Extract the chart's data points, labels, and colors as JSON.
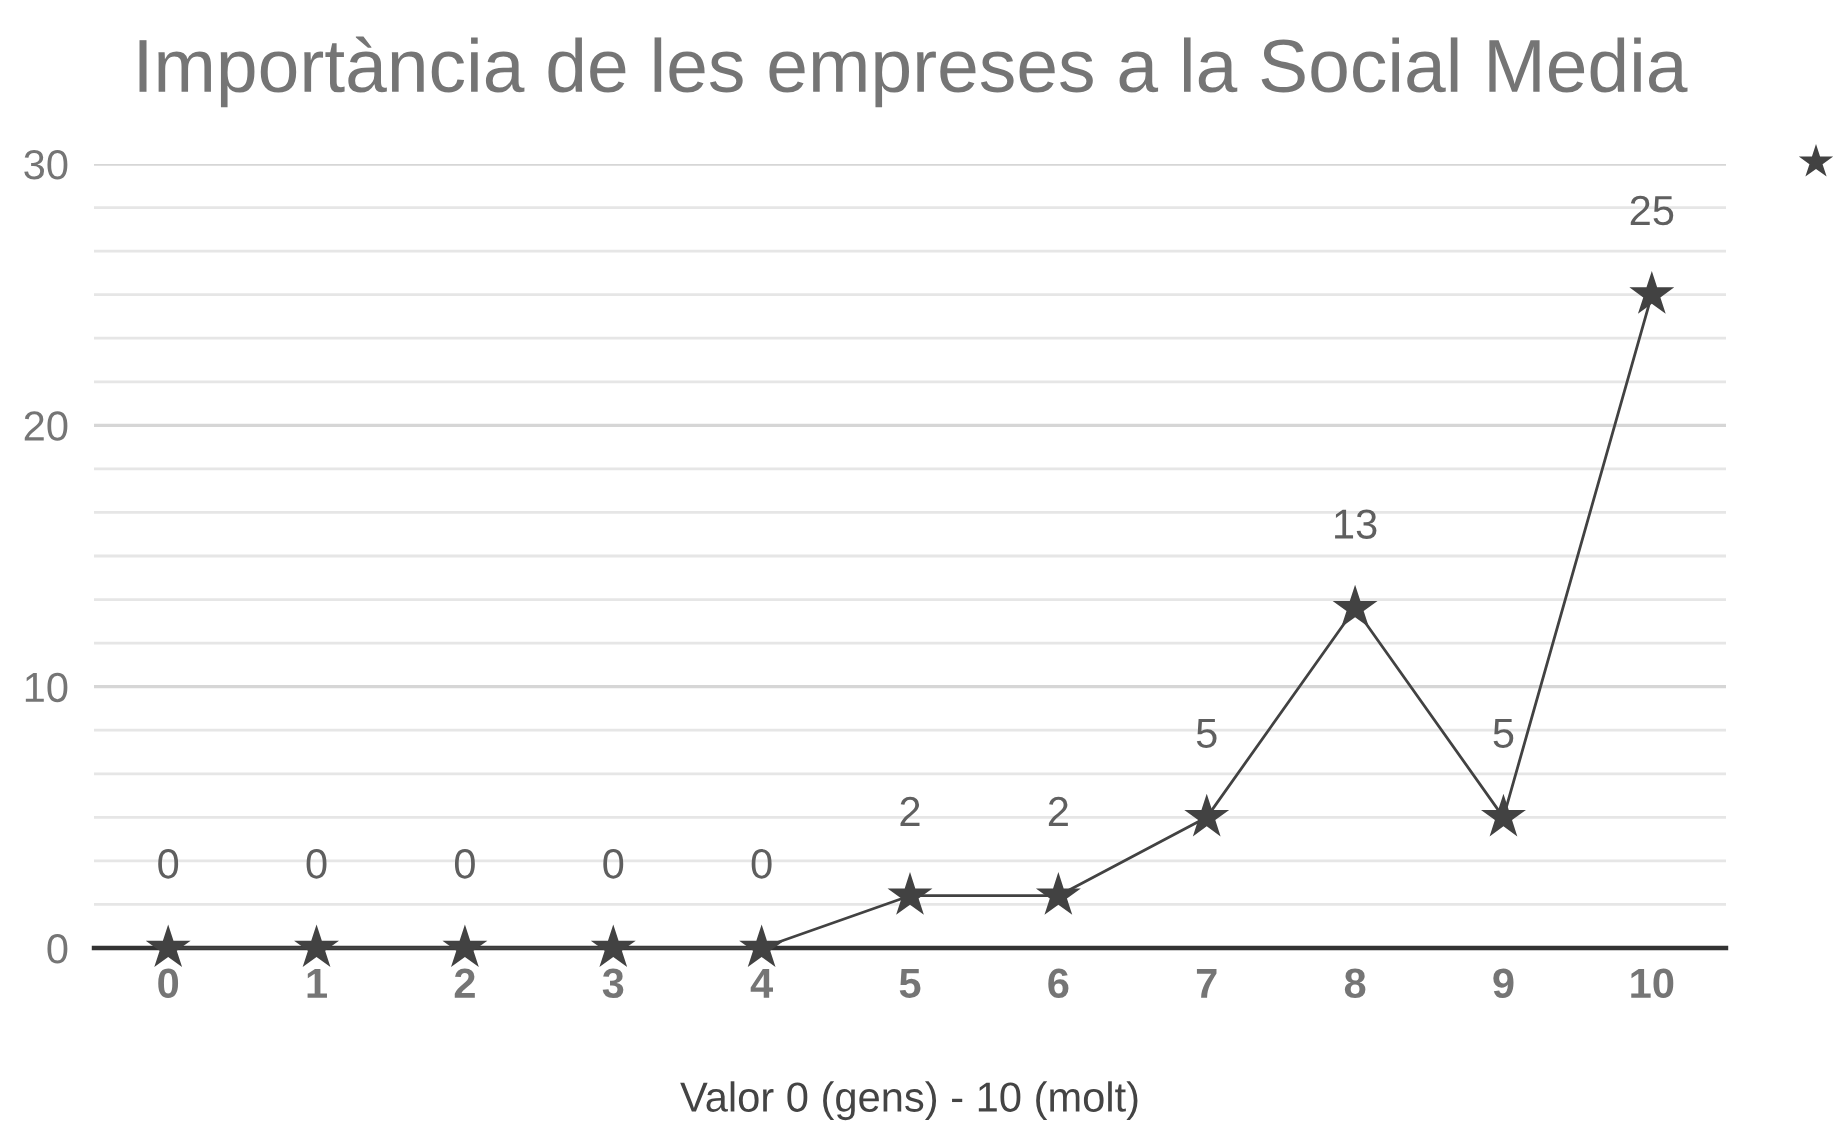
{
  "chart_data": {
    "type": "line",
    "title": "Importància de les empreses a la Social Media",
    "xlabel": "Valor 0 (gens) - 10 (molt)",
    "categories": [
      "0",
      "1",
      "2",
      "3",
      "4",
      "5",
      "6",
      "7",
      "8",
      "9",
      "10"
    ],
    "series": [
      {
        "color": "#424242",
        "values": [
          0,
          0,
          0,
          0,
          0,
          2,
          2,
          5,
          13,
          5,
          25
        ]
      }
    ],
    "ylim": [
      0,
      30
    ],
    "yticks": [
      0,
      10,
      20,
      30
    ],
    "grid": "y",
    "marker": "star",
    "line_style": "solid",
    "data_labels": true
  }
}
